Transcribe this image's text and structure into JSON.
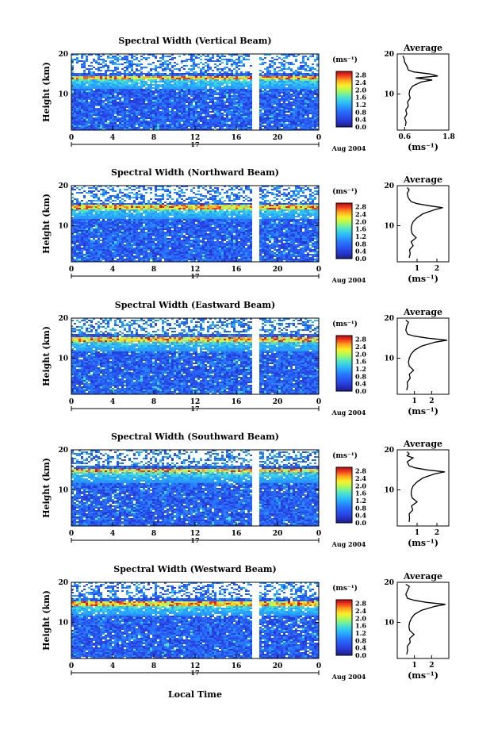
{
  "figure": {
    "xlabel": "Local Time",
    "date_label": "Aug 2004",
    "day_label": "17",
    "ylabel": "Height (km)",
    "unit_label": "(ms⁻¹)",
    "avg_title": "Average",
    "avg_unit": "(ms⁻¹)"
  },
  "chart_data": [
    {
      "type": "heatmap",
      "title": "Spectral Width (Vertical Beam)",
      "x_ticks": [
        "0",
        "4",
        "8",
        "12",
        "16",
        "20",
        "0"
      ],
      "xlim": [
        0,
        24
      ],
      "y_ticks": [
        "10",
        "20"
      ],
      "ylim": [
        1,
        20
      ],
      "colorbar": {
        "ticks": [
          "0.0",
          "0.4",
          "0.8",
          "1.2",
          "1.6",
          "2.0",
          "2.4",
          "2.8"
        ],
        "range": [
          0,
          3.0
        ]
      },
      "data_gap_hours": [
        17.6,
        18.1
      ],
      "strong_layer_km": 14.3,
      "average_profile": {
        "title": "Average",
        "x_ticks": [
          "0.6",
          "1.8"
        ],
        "xlim": [
          0.4,
          1.8
        ],
        "height_km": [
          2,
          3,
          4,
          5,
          6,
          7,
          8,
          9,
          10,
          11,
          12,
          13,
          13.5,
          14,
          14.5,
          15,
          15.5,
          16,
          17,
          18,
          19,
          19.5
        ],
        "width_ms": [
          0.62,
          0.64,
          0.6,
          0.66,
          0.63,
          0.7,
          0.68,
          0.75,
          0.72,
          0.74,
          0.82,
          1.05,
          1.35,
          0.9,
          1.5,
          1.3,
          0.85,
          0.7,
          0.66,
          0.6,
          0.58,
          0.55
        ]
      }
    },
    {
      "type": "heatmap",
      "title": "Spectral Width (Northward Beam)",
      "x_ticks": [
        "0",
        "4",
        "8",
        "12",
        "16",
        "20",
        "0"
      ],
      "xlim": [
        0,
        24
      ],
      "y_ticks": [
        "10",
        "20"
      ],
      "ylim": [
        1,
        20
      ],
      "colorbar": {
        "ticks": [
          "0.0",
          "0.4",
          "0.8",
          "1.2",
          "1.6",
          "2.0",
          "2.4",
          "2.8"
        ],
        "range": [
          0,
          3.0
        ]
      },
      "data_gap_hours": [
        17.6,
        18.1
      ],
      "strong_layer_km": 14.8,
      "average_profile": {
        "title": "Average",
        "x_ticks": [
          "1",
          "2"
        ],
        "xlim": [
          0,
          2.6
        ],
        "height_km": [
          2,
          3,
          4,
          5,
          6,
          7,
          8,
          9,
          10,
          11,
          12,
          13,
          14,
          14.5,
          15,
          15.5,
          16,
          17,
          18,
          19,
          19.5
        ],
        "width_ms": [
          0.6,
          0.65,
          0.62,
          0.8,
          0.7,
          0.95,
          0.75,
          0.7,
          0.72,
          0.8,
          1.0,
          1.3,
          1.9,
          2.3,
          1.6,
          1.0,
          0.7,
          0.55,
          0.5,
          0.6,
          0.5
        ]
      }
    },
    {
      "type": "heatmap",
      "title": "Spectral Width (Eastward Beam)",
      "x_ticks": [
        "0",
        "4",
        "8",
        "12",
        "16",
        "20",
        "0"
      ],
      "xlim": [
        0,
        24
      ],
      "y_ticks": [
        "10",
        "20"
      ],
      "ylim": [
        1,
        20
      ],
      "colorbar": {
        "ticks": [
          "0.0",
          "0.4",
          "0.8",
          "1.2",
          "1.6",
          "2.0",
          "2.4",
          "2.8"
        ],
        "range": [
          0,
          3.0
        ]
      },
      "data_gap_hours": [
        17.6,
        18.1
      ],
      "strong_layer_km": 14.9,
      "average_profile": {
        "title": "Average",
        "x_ticks": [
          "1",
          "2"
        ],
        "xlim": [
          0,
          3.0
        ],
        "height_km": [
          2,
          3,
          4,
          5,
          6,
          7,
          8,
          9,
          10,
          11,
          12,
          13,
          14,
          14.5,
          15,
          15.5,
          16,
          17,
          18,
          19,
          19.5
        ],
        "width_ms": [
          0.55,
          0.6,
          0.58,
          0.75,
          0.7,
          0.95,
          0.7,
          0.65,
          0.7,
          0.8,
          1.0,
          1.4,
          2.2,
          2.9,
          1.8,
          1.0,
          0.6,
          0.5,
          0.55,
          0.65,
          0.5
        ]
      }
    },
    {
      "type": "heatmap",
      "title": "Spectral Width (Southward Beam)",
      "x_ticks": [
        "0",
        "4",
        "8",
        "12",
        "16",
        "20",
        "0"
      ],
      "xlim": [
        0,
        24
      ],
      "y_ticks": [
        "10",
        "20"
      ],
      "ylim": [
        1,
        20
      ],
      "colorbar": {
        "ticks": [
          "0.0",
          "0.4",
          "0.8",
          "1.2",
          "1.6",
          "2.0",
          "2.4",
          "2.8"
        ],
        "range": [
          0,
          3.0
        ]
      },
      "data_gap_hours": [
        17.6,
        18.1
      ],
      "strong_layer_km": 15.0,
      "average_profile": {
        "title": "Average",
        "x_ticks": [
          "1",
          "2"
        ],
        "xlim": [
          0,
          2.6
        ],
        "height_km": [
          2,
          3,
          4,
          5,
          6,
          7,
          8,
          9,
          10,
          11,
          12,
          13,
          14,
          14.5,
          15,
          15.5,
          16,
          17,
          18,
          18.5,
          19,
          19.5
        ],
        "width_ms": [
          0.6,
          0.62,
          0.6,
          0.78,
          0.72,
          1.0,
          0.75,
          0.7,
          0.72,
          0.8,
          1.0,
          1.3,
          1.9,
          2.4,
          1.5,
          0.9,
          0.6,
          0.5,
          0.8,
          0.5,
          0.6,
          0.5
        ]
      }
    },
    {
      "type": "heatmap",
      "title": "Spectral Width (Westward Beam)",
      "x_ticks": [
        "0",
        "4",
        "8",
        "12",
        "16",
        "20",
        "0"
      ],
      "xlim": [
        0,
        24
      ],
      "y_ticks": [
        "10",
        "20"
      ],
      "ylim": [
        1,
        20
      ],
      "colorbar": {
        "ticks": [
          "0.0",
          "0.4",
          "0.8",
          "1.2",
          "1.6",
          "2.0",
          "2.4",
          "2.8"
        ],
        "range": [
          0,
          3.0
        ]
      },
      "data_gap_hours": [
        17.6,
        18.1
      ],
      "strong_layer_km": 14.9,
      "average_profile": {
        "title": "Average",
        "x_ticks": [
          "1",
          "2"
        ],
        "xlim": [
          0,
          3.0
        ],
        "height_km": [
          2,
          3,
          4,
          5,
          6,
          7,
          8,
          9,
          10,
          11,
          12,
          13,
          14,
          14.5,
          15,
          15.5,
          16,
          17,
          18,
          19,
          19.5
        ],
        "width_ms": [
          0.55,
          0.6,
          0.58,
          0.75,
          0.72,
          0.98,
          0.72,
          0.68,
          0.72,
          0.82,
          1.0,
          1.4,
          2.2,
          2.8,
          1.7,
          1.0,
          0.6,
          0.5,
          0.6,
          0.7,
          0.5
        ]
      }
    }
  ]
}
